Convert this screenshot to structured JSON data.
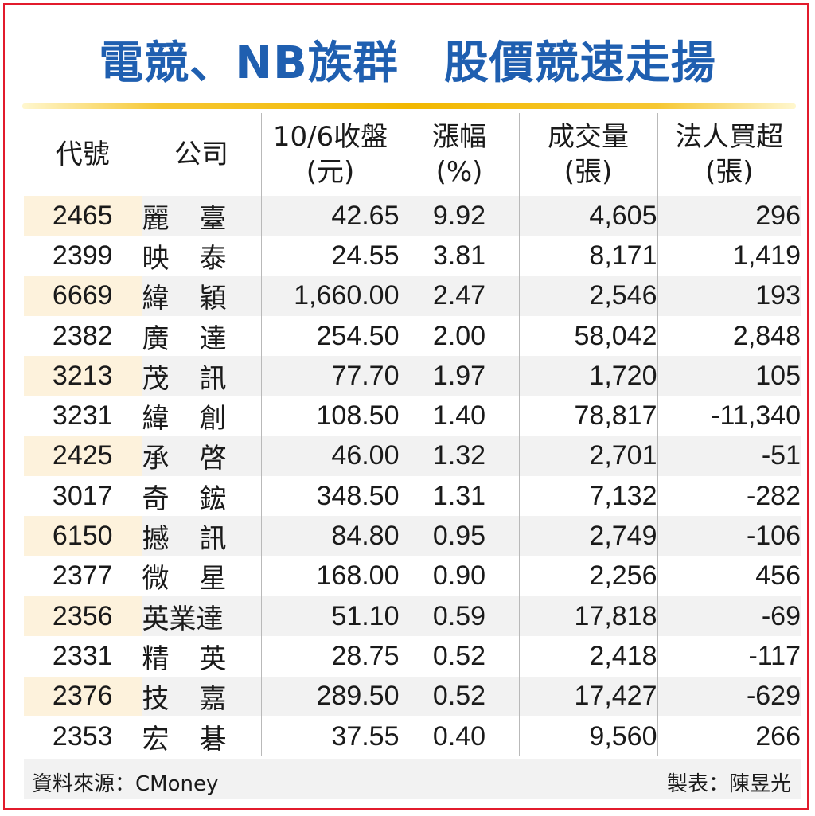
{
  "title": "電競、NB族群　股價競速走揚",
  "headers": [
    {
      "line1": "代號",
      "line2": ""
    },
    {
      "line1": "公司",
      "line2": ""
    },
    {
      "line1": "10/6收盤",
      "line2": "(元)"
    },
    {
      "line1": "漲幅",
      "line2": "(%)"
    },
    {
      "line1": "成交量",
      "line2": "(張)"
    },
    {
      "line1": "法人買超",
      "line2": "(張)"
    }
  ],
  "rows": [
    {
      "code": "2465",
      "company": "麗臺",
      "close": "42.65",
      "change": "9.92",
      "volume": "4,605",
      "net_buy": "296"
    },
    {
      "code": "2399",
      "company": "映泰",
      "close": "24.55",
      "change": "3.81",
      "volume": "8,171",
      "net_buy": "1,419"
    },
    {
      "code": "6669",
      "company": "緯穎",
      "close": "1,660.00",
      "change": "2.47",
      "volume": "2,546",
      "net_buy": "193"
    },
    {
      "code": "2382",
      "company": "廣達",
      "close": "254.50",
      "change": "2.00",
      "volume": "58,042",
      "net_buy": "2,848"
    },
    {
      "code": "3213",
      "company": "茂訊",
      "close": "77.70",
      "change": "1.97",
      "volume": "1,720",
      "net_buy": "105"
    },
    {
      "code": "3231",
      "company": "緯創",
      "close": "108.50",
      "change": "1.40",
      "volume": "78,817",
      "net_buy": "-11,340"
    },
    {
      "code": "2425",
      "company": "承啓",
      "close": "46.00",
      "change": "1.32",
      "volume": "2,701",
      "net_buy": "-51"
    },
    {
      "code": "3017",
      "company": "奇鋐",
      "close": "348.50",
      "change": "1.31",
      "volume": "7,132",
      "net_buy": "-282"
    },
    {
      "code": "6150",
      "company": "撼訊",
      "close": "84.80",
      "change": "0.95",
      "volume": "2,749",
      "net_buy": "-106"
    },
    {
      "code": "2377",
      "company": "微星",
      "close": "168.00",
      "change": "0.90",
      "volume": "2,256",
      "net_buy": "456"
    },
    {
      "code": "2356",
      "company": "英業達",
      "close": "51.10",
      "change": "0.59",
      "volume": "17,818",
      "net_buy": "-69"
    },
    {
      "code": "2331",
      "company": "精英",
      "close": "28.75",
      "change": "0.52",
      "volume": "2,418",
      "net_buy": "-117"
    },
    {
      "code": "2376",
      "company": "技嘉",
      "close": "289.50",
      "change": "0.52",
      "volume": "17,427",
      "net_buy": "-629"
    },
    {
      "code": "2353",
      "company": "宏碁",
      "close": "37.55",
      "change": "0.40",
      "volume": "9,560",
      "net_buy": "266"
    }
  ],
  "footer": {
    "source": "資料來源：CMoney",
    "credit": "製表：陳昱光"
  },
  "colors": {
    "title": "#1f5fb0",
    "frame": "#e21b2c",
    "rule": "#f2b800",
    "stripe": "#fdf2dc",
    "footer_bg": "#f2f2f2"
  }
}
